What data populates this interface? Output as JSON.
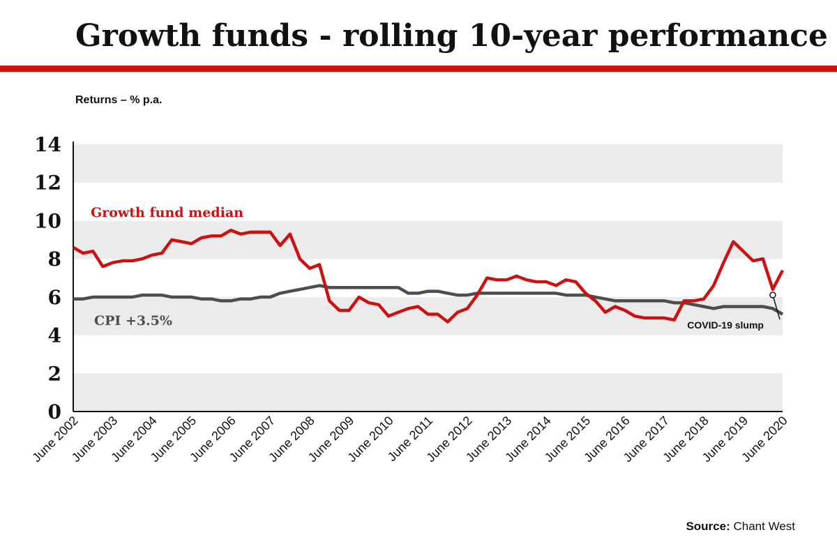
{
  "chart_data": {
    "type": "line",
    "title": "Growth funds - rolling 10-year performance",
    "y_label": "Returns – % p.a.",
    "source_label": "Source:",
    "source": "Chant West",
    "annotation": "COVID-19 slump",
    "categories": [
      "June 2002",
      null,
      null,
      null,
      "June 2003",
      null,
      null,
      null,
      "June 2004",
      null,
      null,
      null,
      "June 2005",
      null,
      null,
      null,
      "June 2006",
      null,
      null,
      null,
      "June 2007",
      null,
      null,
      null,
      "June 2008",
      null,
      null,
      null,
      "June 2009",
      null,
      null,
      null,
      "June 2010",
      null,
      null,
      null,
      "June 2011",
      null,
      null,
      null,
      "June 2012",
      null,
      null,
      null,
      "June 2013",
      null,
      null,
      null,
      "June 2014",
      null,
      null,
      null,
      "June 2015",
      null,
      null,
      null,
      "June 2016",
      null,
      null,
      null,
      "June 2017",
      null,
      null,
      null,
      "June 2018",
      null,
      null,
      null,
      "June 2019",
      null,
      null,
      null,
      "June 2020"
    ],
    "series": [
      {
        "name": "Growth fund median",
        "color": "#cc1111",
        "values": [
          8.6,
          8.3,
          8.4,
          7.6,
          7.8,
          7.9,
          7.9,
          8.0,
          8.2,
          8.3,
          9.0,
          8.9,
          8.8,
          9.1,
          9.2,
          9.2,
          9.5,
          9.3,
          9.4,
          9.4,
          9.4,
          8.7,
          9.3,
          8.0,
          7.5,
          7.7,
          5.8,
          5.3,
          5.3,
          6.0,
          5.7,
          5.6,
          5.0,
          5.2,
          5.4,
          5.5,
          5.1,
          5.1,
          4.7,
          5.2,
          5.4,
          6.1,
          7.0,
          6.9,
          6.9,
          7.1,
          6.9,
          6.8,
          6.8,
          6.6,
          6.9,
          6.8,
          6.2,
          5.8,
          5.2,
          5.5,
          5.3,
          5.0,
          4.9,
          4.9,
          4.9,
          4.8,
          5.8,
          5.8,
          5.9,
          6.6,
          7.8,
          8.9,
          8.4,
          7.9,
          8.0,
          6.4,
          7.4
        ]
      },
      {
        "name": "CPI +3.5%",
        "color": "#4d4d4d",
        "values": [
          5.9,
          5.9,
          6.0,
          6.0,
          6.0,
          6.0,
          6.0,
          6.1,
          6.1,
          6.1,
          6.0,
          6.0,
          6.0,
          5.9,
          5.9,
          5.8,
          5.8,
          5.9,
          5.9,
          6.0,
          6.0,
          6.2,
          6.3,
          6.4,
          6.5,
          6.6,
          6.5,
          6.5,
          6.5,
          6.5,
          6.5,
          6.5,
          6.5,
          6.5,
          6.2,
          6.2,
          6.3,
          6.3,
          6.2,
          6.1,
          6.1,
          6.2,
          6.2,
          6.2,
          6.2,
          6.2,
          6.2,
          6.2,
          6.2,
          6.2,
          6.1,
          6.1,
          6.1,
          6.0,
          5.9,
          5.8,
          5.8,
          5.8,
          5.8,
          5.8,
          5.8,
          5.7,
          5.7,
          5.6,
          5.5,
          5.4,
          5.5,
          5.5,
          5.5,
          5.5,
          5.5,
          5.4,
          5.1
        ]
      }
    ],
    "ylim": [
      0,
      14
    ],
    "yticks": [
      0,
      2,
      4,
      6,
      8,
      10,
      12,
      14
    ],
    "bands": true
  }
}
